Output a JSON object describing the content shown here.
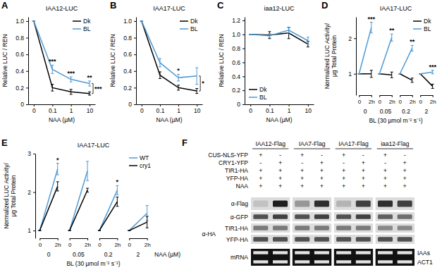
{
  "chart_data": [
    {
      "panel": "A",
      "type": "line",
      "title": "IAA12-LUC",
      "x_label": "NAA (µM)",
      "y_label": "Relative LUC / REN",
      "categories": [
        "0",
        "0.1",
        "1",
        "10"
      ],
      "series": [
        {
          "name": "Dk",
          "color": "#000000",
          "values": [
            1,
            0.2,
            0.15,
            0.13
          ],
          "errors": [
            0,
            0.04,
            0.03,
            0.02
          ]
        },
        {
          "name": "BL",
          "color": "#4e9ad4",
          "values": [
            1,
            0.42,
            0.3,
            0.25
          ],
          "errors": [
            0,
            0.05,
            0.03,
            0.03
          ]
        }
      ],
      "ylim": [
        0,
        1.05
      ],
      "yticks": [
        0,
        0.2,
        0.4,
        0.6,
        0.8,
        {
          "value": 1,
          "label": "1.0"
        }
      ],
      "legend": "upper right",
      "annotations": [
        null,
        "***",
        "***",
        "**"
      ],
      "bracket_annotation": "***"
    },
    {
      "panel": "B",
      "type": "line",
      "title": "IAA17-LUC",
      "x_label": "NAA (µM)",
      "y_label": "Relative LUC / REN",
      "categories": [
        "0",
        "0.1",
        "1",
        "10"
      ],
      "series": [
        {
          "name": "Dk",
          "color": "#000000",
          "values": [
            1,
            0.35,
            0.2,
            0.16
          ],
          "errors": [
            0,
            0.04,
            0.03,
            0.03
          ]
        },
        {
          "name": "BL",
          "color": "#4e9ad4",
          "values": [
            1,
            0.5,
            0.32,
            0.34
          ],
          "errors": [
            0,
            0.05,
            0.04,
            0.1
          ]
        }
      ],
      "ylim": [
        0,
        1.05
      ],
      "yticks": [
        0,
        0.2,
        0.4,
        0.6,
        0.8,
        {
          "value": 1,
          "label": "1.0"
        }
      ],
      "legend": "upper right",
      "annotations": [
        null,
        null,
        "*",
        null
      ],
      "bracket_annotation": "*"
    },
    {
      "panel": "C",
      "type": "line",
      "title": "iaa12-LUC",
      "x_label": "NAA (µM)",
      "y_label": "Relative LUC / REN",
      "categories": [
        "0",
        "0.1",
        "1",
        "10"
      ],
      "series": [
        {
          "name": "Dk",
          "color": "#000000",
          "values": [
            1,
            0.99,
            1.02,
            0.86
          ],
          "errors": [
            0,
            0.05,
            0.08,
            0.04
          ]
        },
        {
          "name": "BL",
          "color": "#4e9ad4",
          "values": [
            1,
            0.98,
            1.06,
            0.91
          ],
          "errors": [
            0,
            0.03,
            0.04,
            0.05
          ]
        }
      ],
      "ylim": [
        0,
        1.25
      ],
      "yticks": [
        0,
        0.2,
        0.4,
        0.6,
        0.8,
        {
          "value": 1,
          "label": "1.0"
        },
        1.2
      ],
      "legend": "lower left"
    },
    {
      "panel": "D",
      "type": "grouped_line",
      "title": "IAA17-LUC",
      "x_label": "BL (30 µmol m⁻² s⁻¹)",
      "y_label": [
        "Normalized LUC Activity/",
        "µg Total Protein"
      ],
      "groups": [
        "0",
        "0.05",
        "0.2",
        "2"
      ],
      "categories": [
        "0",
        "2h"
      ],
      "series": [
        {
          "name": "Dk",
          "color": "#000000",
          "values": [
            [
              1,
              1.0
            ],
            [
              1,
              0.97
            ],
            [
              1,
              0.82
            ],
            [
              1,
              0.65
            ]
          ],
          "errors": [
            [
              0,
              0.1
            ],
            [
              0,
              0.08
            ],
            [
              0,
              0.06
            ],
            [
              0,
              0.06
            ]
          ]
        },
        {
          "name": "BL",
          "color": "#4e9ad4",
          "values": [
            [
              1,
              2.3
            ],
            [
              1,
              2.02
            ],
            [
              1,
              1.72
            ],
            [
              1,
              1.05
            ]
          ],
          "errors": [
            [
              0,
              0.15
            ],
            [
              0,
              0.1
            ],
            [
              0,
              0.08
            ],
            [
              0,
              0.05
            ]
          ]
        }
      ],
      "ylim": [
        0.4,
        2.6
      ],
      "yticks": [
        1,
        2
      ],
      "legend": "upper right",
      "annotations": [
        "***",
        "**",
        "**",
        "***"
      ]
    },
    {
      "panel": "E",
      "type": "grouped_line",
      "title": "IAA17-LUC",
      "x_label": "BL (30 µmol m⁻² s⁻¹)",
      "y_label": [
        "Normalized LUC Activity/",
        "µg Total Protein"
      ],
      "group_label": "NAA (µM)",
      "groups": [
        "0",
        "0.05",
        "0.2",
        "2"
      ],
      "categories": [
        "0",
        "2h"
      ],
      "series": [
        {
          "name": "WT",
          "color": "#4e9ad4",
          "values": [
            [
              1,
              2.6
            ],
            [
              1,
              2.55
            ],
            [
              1,
              2.05
            ],
            [
              1,
              1.45
            ]
          ],
          "errors": [
            [
              0,
              0.15
            ],
            [
              0,
              0.25
            ],
            [
              0,
              0.12
            ],
            [
              0,
              0.2
            ]
          ]
        },
        {
          "name": "cry1",
          "color": "#000000",
          "values": [
            [
              1,
              2.15
            ],
            [
              1,
              2.05
            ],
            [
              1,
              1.75
            ],
            [
              1,
              1.22
            ]
          ],
          "errors": [
            [
              0,
              0.12
            ],
            [
              0,
              0.05
            ],
            [
              0,
              0.12
            ],
            [
              0,
              0.15
            ]
          ]
        }
      ],
      "ylim": [
        0.8,
        3.0
      ],
      "yticks": [
        1,
        2,
        3
      ],
      "legend": "upper right",
      "annotations": [
        "*",
        null,
        "*",
        null
      ]
    }
  ],
  "blot": {
    "panel": "F",
    "constructs": [
      "IAA12-Flag",
      "IAA7-Flag",
      "IAA17-Flag",
      "iaa12-Flag"
    ],
    "treatments": [
      {
        "label": "CUS-NLS-YFP",
        "marks": [
          "+",
          "-",
          "+",
          "-",
          "+",
          "-",
          "+",
          "-"
        ]
      },
      {
        "label": "CRY1-YFP",
        "marks": [
          "-",
          "+",
          "-",
          "+",
          "-",
          "+",
          "-",
          "+"
        ]
      },
      {
        "label": "TIR1-HA",
        "marks": [
          "+",
          "+",
          "+",
          "+",
          "+",
          "+",
          "+",
          "+"
        ]
      },
      {
        "label": "YFP-HA",
        "marks": [
          "+",
          "+",
          "+",
          "+",
          "+",
          "+",
          "+",
          "+"
        ]
      },
      {
        "label": "NAA",
        "marks": [
          "+",
          "+",
          "+",
          "+",
          "+",
          "+",
          "+",
          "+"
        ]
      }
    ],
    "blots": [
      {
        "antibody": "α-Flag",
        "intensity": [
          0.35,
          0.9,
          0.5,
          0.85,
          0.4,
          0.8,
          0.85,
          0.8
        ]
      },
      {
        "antibody": "α-GFP",
        "intensity": [
          0.75,
          0.8,
          0.75,
          0.8,
          0.75,
          0.8,
          0.7,
          0.65
        ]
      },
      {
        "antibody": "α-HA",
        "band": "TIR1-HA",
        "intensity": [
          0.6,
          0.6,
          0.6,
          0.6,
          0.6,
          0.6,
          0.55,
          0.55
        ]
      },
      {
        "band": "YFP-HA",
        "intensity": [
          0.75,
          0.75,
          0.75,
          0.75,
          0.75,
          0.75,
          0.75,
          0.75
        ]
      }
    ],
    "mrna": {
      "label": "mRNA",
      "rows": [
        {
          "band": "IAAs",
          "intensity": [
            0.8,
            0.8,
            0.8,
            0.8,
            0.8,
            0.8,
            0.8,
            0.8
          ]
        },
        {
          "band": "ACT1",
          "intensity": [
            0.8,
            0.8,
            0.8,
            0.8,
            0.8,
            0.8,
            0.8,
            0.8
          ]
        }
      ]
    }
  }
}
